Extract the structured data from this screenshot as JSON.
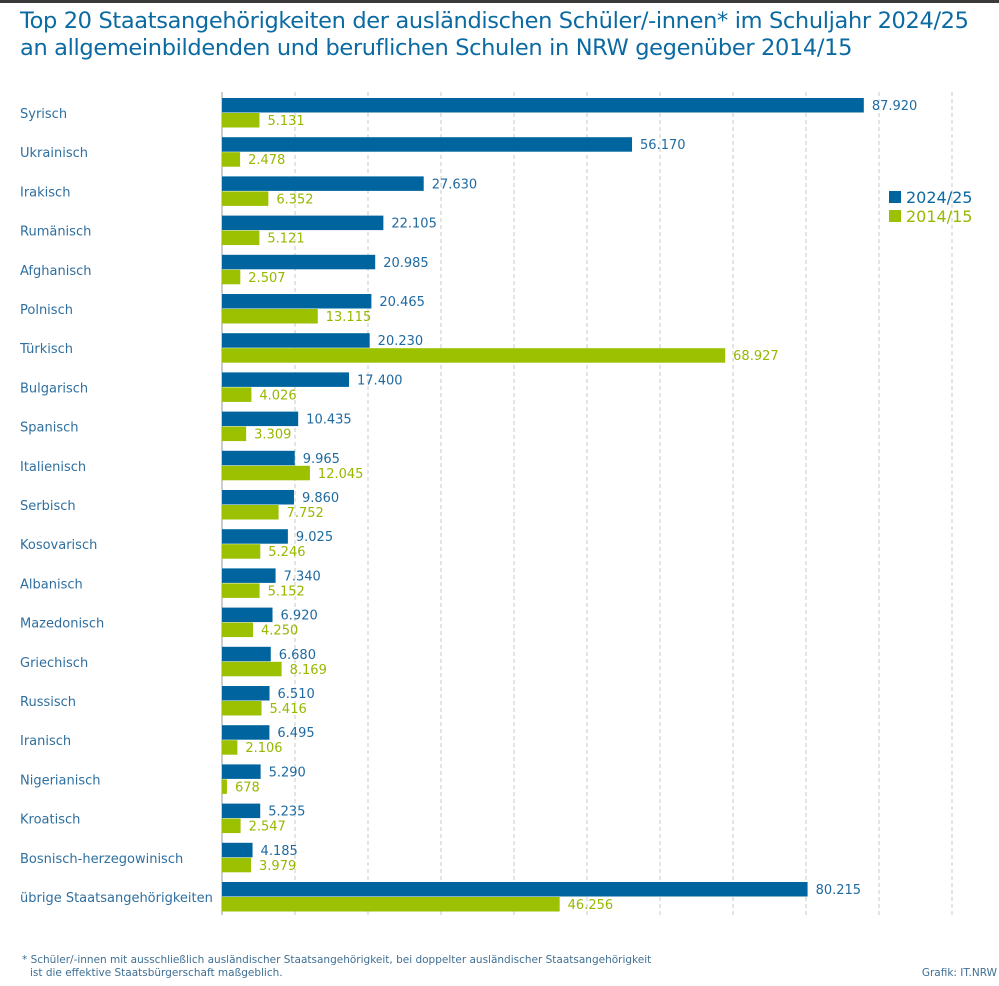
{
  "title_line1": "Top 20 Staatsangehörigkeiten der ausländischen Schüler/-innen* im Schuljahr 2024/25",
  "title_line2": "an allgemeinbildenden und beruflichen Schulen in NRW gegenüber 2014/15",
  "footnote_line1": "* Schüler/-innen mit ausschließlich ausländischer Staatsangehörigkeit, bei doppelter ausländischer Staatsangehörigkeit",
  "footnote_line2": "ist die effektive Staatsbürgerschaft maßgeblich.",
  "source": "Grafik: IT.NRW",
  "colors": {
    "series_2024": "#00659e",
    "series_2014": "#9bc100",
    "grid": "#c8c8c8",
    "axis": "#9a9a9a"
  },
  "chart_data": {
    "type": "bar",
    "orientation": "horizontal",
    "title": "Top 20 Staatsangehörigkeiten der ausländischen Schüler/-innen* im Schuljahr 2024/25 an allgemeinbildenden und beruflichen Schulen in NRW gegenüber 2014/15",
    "xlabel": "",
    "ylabel": "",
    "xlim": [
      0,
      100000
    ],
    "grid_step": 10000,
    "grid": true,
    "tick_labels_shown": false,
    "legend_position": "right",
    "categories": [
      "Syrisch",
      "Ukrainisch",
      "Irakisch",
      "Rumänisch",
      "Afghanisch",
      "Polnisch",
      "Türkisch",
      "Bulgarisch",
      "Spanisch",
      "Italienisch",
      "Serbisch",
      "Kosovarisch",
      "Albanisch",
      "Mazedonisch",
      "Griechisch",
      "Russisch",
      "Iranisch",
      "Nigerianisch",
      "Kroatisch",
      "Bosnisch-herzegowinisch",
      "übrige Staatsangehörigkeiten"
    ],
    "series": [
      {
        "name": "2024/25",
        "values": [
          87920,
          56170,
          27630,
          22105,
          20985,
          20465,
          20230,
          17400,
          10435,
          9965,
          9860,
          9025,
          7340,
          6920,
          6680,
          6510,
          6495,
          5290,
          5235,
          4185,
          80215
        ],
        "labels": [
          "87.920",
          "56.170",
          "27.630",
          "22.105",
          "20.985",
          "20.465",
          "20.230",
          "17.400",
          "10.435",
          "9.965",
          "9.860",
          "9.025",
          "7.340",
          "6.920",
          "6.680",
          "6.510",
          "6.495",
          "5.290",
          "5.235",
          "4.185",
          "80.215"
        ]
      },
      {
        "name": "2014/15",
        "values": [
          5131,
          2478,
          6352,
          5121,
          2507,
          13115,
          68927,
          4026,
          3309,
          12045,
          7752,
          5246,
          5152,
          4250,
          8169,
          5416,
          2106,
          678,
          2547,
          3979,
          46256
        ],
        "labels": [
          "5.131",
          "2.478",
          "6.352",
          "5.121",
          "2.507",
          "13.115",
          "68.927",
          "4.026",
          "3.309",
          "12.045",
          "7.752",
          "5.246",
          "5.152",
          "4.250",
          "8.169",
          "5.416",
          "2.106",
          "678",
          "2.547",
          "3.979",
          "46.256"
        ]
      }
    ]
  }
}
